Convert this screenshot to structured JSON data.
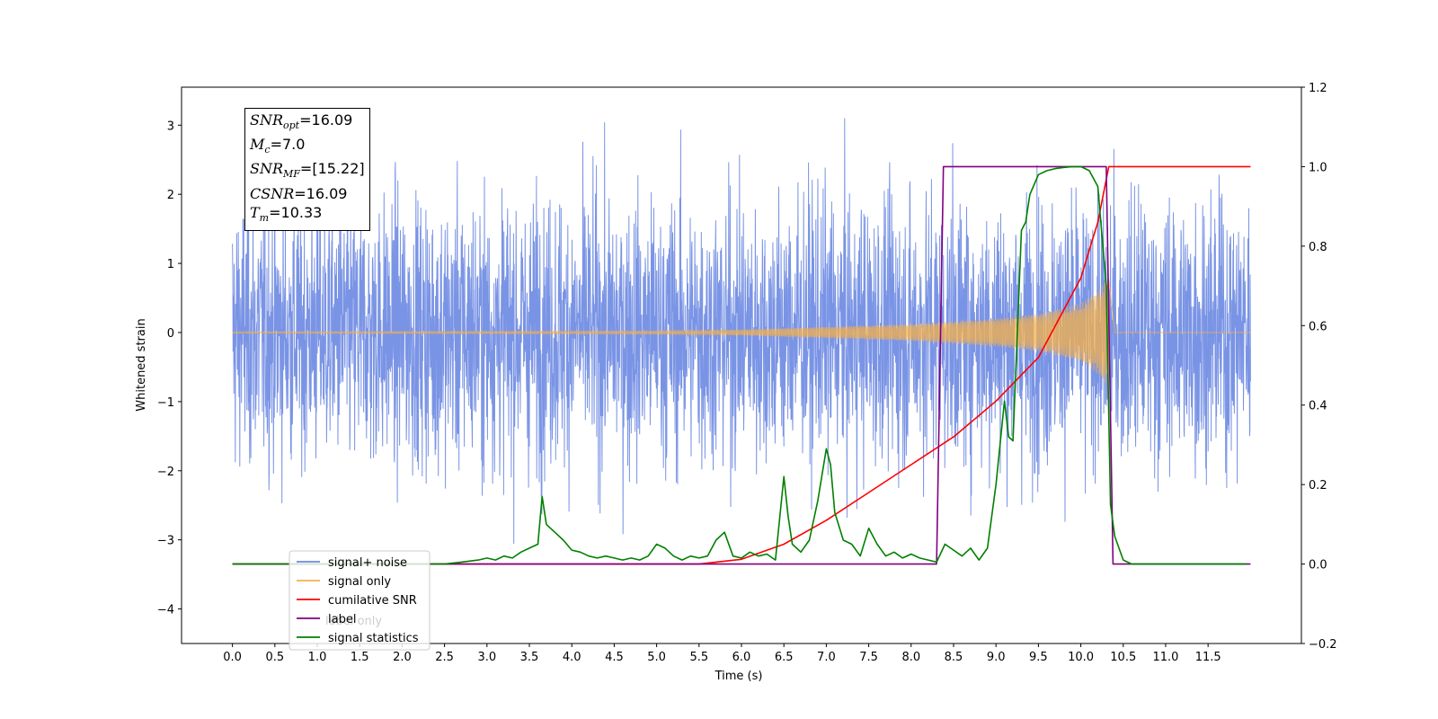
{
  "chart_data": {
    "type": "line",
    "xlabel": "Time (s)",
    "ylabel": "Whitened strain",
    "xlim": [
      -0.6,
      12.6
    ],
    "ylim": [
      -4.5,
      3.55
    ],
    "y2lim": [
      -0.2,
      1.2
    ],
    "x_ticks": [
      "0.0",
      "0.5",
      "1.0",
      "1.5",
      "2.0",
      "2.5",
      "3.0",
      "3.5",
      "4.0",
      "4.5",
      "5.0",
      "5.5",
      "6.0",
      "6.5",
      "7.0",
      "7.5",
      "8.0",
      "8.5",
      "9.0",
      "9.5",
      "10.0",
      "10.5",
      "11.0",
      "11.5"
    ],
    "y_ticks": [
      3,
      2,
      1,
      0,
      -1,
      -2,
      -3,
      -4
    ],
    "y_tick_labels": [
      "3",
      "2",
      "1",
      "0",
      "−1",
      "−2",
      "−3",
      "−4"
    ],
    "y2_ticks": [
      1.2,
      1.0,
      0.8,
      0.6,
      0.4,
      0.2,
      0.0,
      -0.2
    ],
    "y2_tick_labels": [
      "1.2",
      "1.0",
      "0.8",
      "0.6",
      "0.4",
      "0.2",
      "0.0",
      "−0.2"
    ],
    "legend_position": "lower-left",
    "series": [
      {
        "name": "signal+ noise",
        "axis": "left",
        "color": "#6b88e2",
        "description": "noise samples spanning about -2.7 to 3.2 over 0-12 s",
        "envelope": {
          "t": [
            0,
            12
          ],
          "amplitude": 2.2
        }
      },
      {
        "name": "signal only",
        "axis": "left",
        "color": "#f5b04a",
        "description": "chirp growing in amplitude to about 0.8 near 10.3 s",
        "envelope": {
          "t": [
            0,
            5,
            6,
            7,
            8,
            8.5,
            9,
            9.5,
            10,
            10.2,
            10.3,
            10.33
          ],
          "amplitude": [
            0.01,
            0.02,
            0.04,
            0.08,
            0.12,
            0.16,
            0.2,
            0.27,
            0.42,
            0.6,
            0.75,
            0.8
          ]
        }
      },
      {
        "name": "cumilative SNR",
        "axis": "right",
        "color": "#ff0000",
        "x": [
          0,
          5.5,
          6.0,
          6.5,
          7.0,
          7.5,
          8.0,
          8.5,
          9.0,
          9.5,
          10.0,
          10.2,
          10.33,
          10.35,
          12.0
        ],
        "y": [
          0.0,
          0.0,
          0.012,
          0.05,
          0.11,
          0.18,
          0.25,
          0.32,
          0.41,
          0.52,
          0.72,
          0.86,
          1.0,
          1.0,
          1.0
        ]
      },
      {
        "name": "label",
        "axis": "right",
        "color": "#800080",
        "x": [
          0,
          8.3,
          8.38,
          10.3,
          10.38,
          12.0
        ],
        "y": [
          0,
          0,
          1,
          1,
          0,
          0
        ]
      },
      {
        "name": "signal statistics",
        "axis": "right",
        "color": "#008000",
        "x": [
          0,
          1,
          2,
          2.5,
          2.7,
          2.9,
          3.0,
          3.1,
          3.2,
          3.3,
          3.4,
          3.5,
          3.6,
          3.65,
          3.7,
          3.8,
          3.9,
          4.0,
          4.1,
          4.2,
          4.3,
          4.4,
          4.5,
          4.6,
          4.7,
          4.8,
          4.9,
          5.0,
          5.1,
          5.2,
          5.3,
          5.4,
          5.5,
          5.6,
          5.7,
          5.8,
          5.9,
          6.0,
          6.1,
          6.2,
          6.3,
          6.4,
          6.5,
          6.55,
          6.6,
          6.7,
          6.8,
          6.9,
          7.0,
          7.05,
          7.1,
          7.2,
          7.3,
          7.4,
          7.5,
          7.6,
          7.7,
          7.8,
          7.9,
          8.0,
          8.1,
          8.2,
          8.3,
          8.4,
          8.5,
          8.6,
          8.7,
          8.8,
          8.9,
          9.0,
          9.1,
          9.15,
          9.2,
          9.3,
          9.35,
          9.4,
          9.5,
          9.6,
          9.7,
          9.8,
          9.9,
          10.0,
          10.1,
          10.2,
          10.3,
          10.35,
          10.4,
          10.5,
          10.6,
          11.0,
          11.5,
          11.95
        ],
        "y": [
          0,
          0,
          0,
          0,
          0.005,
          0.01,
          0.015,
          0.01,
          0.02,
          0.015,
          0.03,
          0.04,
          0.05,
          0.17,
          0.1,
          0.08,
          0.06,
          0.035,
          0.03,
          0.02,
          0.015,
          0.02,
          0.015,
          0.01,
          0.015,
          0.01,
          0.02,
          0.05,
          0.04,
          0.02,
          0.01,
          0.02,
          0.015,
          0.02,
          0.06,
          0.08,
          0.02,
          0.015,
          0.03,
          0.02,
          0.025,
          0.01,
          0.22,
          0.12,
          0.05,
          0.03,
          0.06,
          0.16,
          0.29,
          0.25,
          0.13,
          0.06,
          0.05,
          0.02,
          0.09,
          0.05,
          0.02,
          0.03,
          0.015,
          0.025,
          0.015,
          0.01,
          0.005,
          0.05,
          0.035,
          0.02,
          0.04,
          0.01,
          0.04,
          0.2,
          0.41,
          0.32,
          0.31,
          0.84,
          0.86,
          0.93,
          0.98,
          0.99,
          0.995,
          0.998,
          1.0,
          1.0,
          0.99,
          0.95,
          0.7,
          0.15,
          0.07,
          0.01,
          0.0,
          0,
          0,
          0
        ]
      }
    ],
    "annotation": [
      {
        "sym": "SNR",
        "sub": "opt",
        "val": "=16.09"
      },
      {
        "sym": "M",
        "sub": "c",
        "val": "=7.0"
      },
      {
        "sym": "SNR",
        "sub": "MF",
        "val": "=[15.22]"
      },
      {
        "sym": "CSNR",
        "sub": "",
        "val": "=16.09"
      },
      {
        "sym": "T",
        "sub": "m",
        "val": "=10.33"
      }
    ],
    "legend": [
      {
        "label": "signal+ noise",
        "color": "#6b88e2"
      },
      {
        "label": "signal only",
        "color": "#f5b04a"
      },
      {
        "label": "cumilative SNR",
        "color": "#ff0000"
      },
      {
        "label": "label",
        "color": "#800080"
      },
      {
        "label": "signal statistics",
        "color": "#008000"
      }
    ],
    "legend_ghost_text": "label only"
  }
}
